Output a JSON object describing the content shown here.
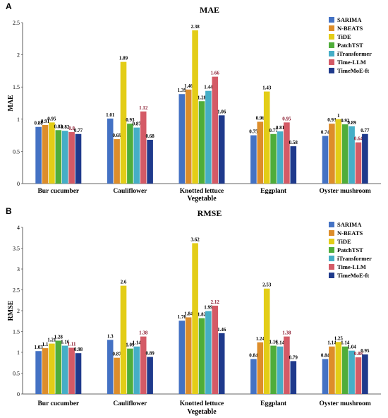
{
  "colors": [
    "#4472c4",
    "#dd8d2a",
    "#e3cd17",
    "#4fad3a",
    "#45aec7",
    "#d45a66",
    "#1f3a8c"
  ],
  "chart_data": [
    {
      "panel": "A",
      "type": "bar",
      "title": "MAE",
      "xlabel": "Vegetable",
      "ylabel": "MAE",
      "ylim": [
        0,
        2.5
      ],
      "yticks": [
        "0",
        "0.5",
        "1",
        "1.5",
        "2",
        "2.5"
      ],
      "categories": [
        "Bur cucumber",
        "Cauliflower",
        "Knotted lettuce",
        "Eggplant",
        "Oyster mushroom"
      ],
      "legend_position": "top-right",
      "series": [
        {
          "name": "SARIMA",
          "values": [
            0.88,
            1.01,
            1.39,
            0.75,
            0.74
          ],
          "labels": [
            "0.88",
            "1.01",
            "1.39",
            "0.75",
            "0.74"
          ]
        },
        {
          "name": "N-BEATS",
          "values": [
            0.91,
            0.69,
            1.46,
            0.96,
            0.93
          ],
          "labels": [
            "0.91",
            "0.69",
            "1.46",
            "0.96",
            "0.93"
          ]
        },
        {
          "name": "TiDE",
          "values": [
            0.95,
            1.89,
            2.38,
            1.43,
            1.0
          ],
          "labels": [
            "0.95",
            "1.89",
            "2.38",
            "1.43",
            "1"
          ]
        },
        {
          "name": "PatchTST",
          "values": [
            0.83,
            0.93,
            1.28,
            0.77,
            0.92
          ],
          "labels": [
            "0.83",
            "0.93",
            "1.28",
            "0.77",
            "0.92"
          ]
        },
        {
          "name": "iTransformer",
          "values": [
            0.82,
            0.87,
            1.44,
            0.81,
            0.89
          ],
          "labels": [
            "0.82",
            "0.87",
            "1.44",
            "0.81",
            "0.89"
          ]
        },
        {
          "name": "Time-LLM",
          "values": [
            0.8,
            1.12,
            1.66,
            0.95,
            0.64
          ],
          "labels": [
            "0.8",
            "1.12",
            "1.66",
            "0.95",
            "0.64"
          ]
        },
        {
          "name": "TimeMoE-ft",
          "values": [
            0.77,
            0.68,
            1.06,
            0.58,
            0.77
          ],
          "labels": [
            "0.77",
            "0.68",
            "1.06",
            "0.58",
            "0.77"
          ]
        }
      ]
    },
    {
      "panel": "B",
      "type": "bar",
      "title": "RMSE",
      "xlabel": "Vegetable",
      "ylabel": "RMSE",
      "ylim": [
        0,
        4
      ],
      "yticks": [
        "0",
        "0.5",
        "1",
        "1.5",
        "2",
        "2.5",
        "3",
        "3.5",
        "4"
      ],
      "categories": [
        "Bur cucumber",
        "Cauliflower",
        "Knotted lettuce",
        "Eggplant",
        "Oyster mushroom"
      ],
      "legend_position": "top-right",
      "series": [
        {
          "name": "SARIMA",
          "values": [
            1.03,
            1.3,
            1.76,
            0.84,
            0.84
          ],
          "labels": [
            "1.03",
            "1.3",
            "1.76",
            "0.84",
            "0.84"
          ]
        },
        {
          "name": "N-BEATS",
          "values": [
            1.1,
            0.87,
            1.84,
            1.24,
            1.14
          ],
          "labels": [
            "1.1",
            "0.87",
            "1.84",
            "1.24",
            "1.14"
          ]
        },
        {
          "name": "TiDE",
          "values": [
            1.21,
            2.6,
            3.62,
            2.53,
            1.25
          ],
          "labels": [
            "1.21",
            "2.6",
            "3.62",
            "2.53",
            "1.25"
          ]
        },
        {
          "name": "PatchTST",
          "values": [
            1.28,
            1.09,
            1.82,
            1.16,
            1.14
          ],
          "labels": [
            "1.28",
            "1.09",
            "1.82",
            "1.16",
            "1.14"
          ]
        },
        {
          "name": "iTransformer",
          "values": [
            1.16,
            1.14,
            1.99,
            1.14,
            1.04
          ],
          "labels": [
            "1.16",
            "1.14",
            "1.99",
            "1.14",
            "1.04"
          ]
        },
        {
          "name": "Time-LLM",
          "values": [
            1.11,
            1.38,
            2.12,
            1.38,
            0.88
          ],
          "labels": [
            "1.11",
            "1.38",
            "2.12",
            "1.38",
            "0.88"
          ]
        },
        {
          "name": "TimeMoE-ft",
          "values": [
            0.98,
            0.89,
            1.46,
            0.79,
            0.95
          ],
          "labels": [
            "0.98",
            "0.89",
            "1.46",
            "0.79",
            "0.95"
          ]
        }
      ]
    }
  ]
}
